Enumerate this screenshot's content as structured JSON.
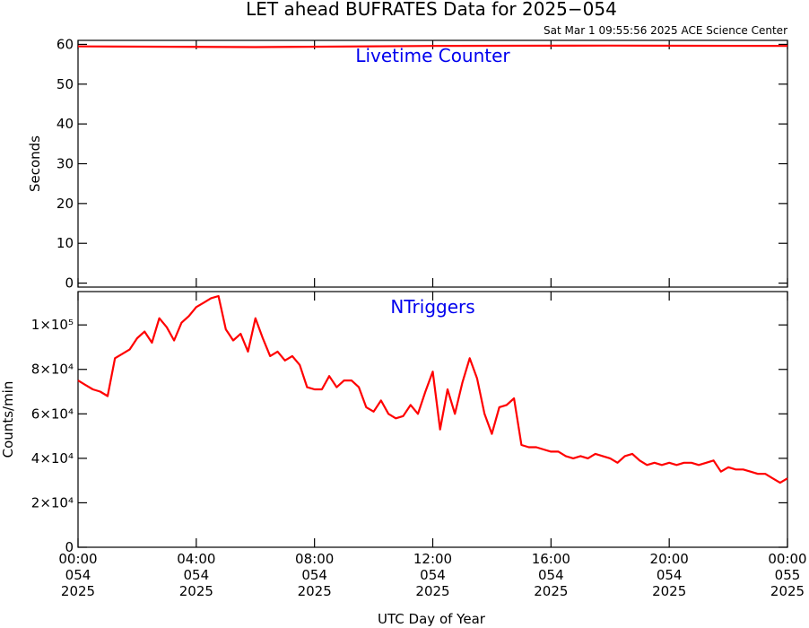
{
  "chart_data": [
    {
      "type": "line",
      "title": "LET ahead BUFRATES Data for 2025−054",
      "subtitle": "Sat Mar  1 09:55:56 2025 ACE Science Center",
      "annotation": "Livetime Counter",
      "ylabel": "Seconds",
      "x": [
        0,
        6,
        12,
        18,
        24
      ],
      "series": [
        {
          "color": "#ff0000",
          "values": [
            59.5,
            59.3,
            59.6,
            59.7,
            59.6
          ]
        }
      ],
      "xlim": [
        0,
        24
      ],
      "xticks": [
        0,
        4,
        8,
        12,
        16,
        20,
        24
      ],
      "ylim": [
        -1,
        61
      ],
      "yticks": [
        0,
        10,
        20,
        30,
        40,
        50,
        60
      ]
    },
    {
      "type": "line",
      "annotation": "NTriggers",
      "ylabel": "Counts/min",
      "xlabel": "UTC Day of Year",
      "x": [
        0,
        0.25,
        0.5,
        0.75,
        1,
        1.25,
        1.5,
        1.75,
        2,
        2.25,
        2.5,
        2.75,
        3,
        3.25,
        3.5,
        3.75,
        4,
        4.25,
        4.5,
        4.75,
        5,
        5.25,
        5.5,
        5.75,
        6,
        6.25,
        6.5,
        6.75,
        7,
        7.25,
        7.5,
        7.75,
        8,
        8.25,
        8.5,
        8.75,
        9,
        9.25,
        9.5,
        9.75,
        10,
        10.25,
        10.5,
        10.75,
        11,
        11.25,
        11.5,
        11.75,
        12,
        12.25,
        12.5,
        12.75,
        13,
        13.25,
        13.5,
        13.75,
        14,
        14.25,
        14.5,
        14.75,
        15,
        15.25,
        15.5,
        15.75,
        16,
        16.25,
        16.5,
        16.75,
        17,
        17.25,
        17.5,
        17.75,
        18,
        18.25,
        18.5,
        18.75,
        19,
        19.25,
        19.5,
        19.75,
        20,
        20.25,
        20.5,
        20.75,
        21,
        21.25,
        21.5,
        21.75,
        22,
        22.25,
        22.5,
        22.75,
        23,
        23.25,
        23.5,
        23.75,
        24
      ],
      "series": [
        {
          "color": "#ff0000",
          "values": [
            75000,
            73000,
            71000,
            70000,
            68000,
            85000,
            87000,
            89000,
            94000,
            97000,
            92000,
            103000,
            99000,
            93000,
            101000,
            104000,
            108000,
            110000,
            112000,
            113000,
            98000,
            93000,
            96000,
            88000,
            103000,
            94000,
            86000,
            88000,
            84000,
            86000,
            82000,
            72000,
            71000,
            71000,
            77000,
            72000,
            75000,
            75000,
            72000,
            63000,
            61000,
            66000,
            60000,
            58000,
            59000,
            64000,
            60000,
            70000,
            79000,
            53000,
            71000,
            60000,
            74000,
            85000,
            76000,
            60000,
            51000,
            63000,
            64000,
            67000,
            46000,
            45000,
            45000,
            44000,
            43000,
            43000,
            41000,
            40000,
            41000,
            40000,
            42000,
            41000,
            40000,
            38000,
            41000,
            42000,
            39000,
            37000,
            38000,
            37000,
            38000,
            37000,
            38000,
            38000,
            37000,
            38000,
            39000,
            34000,
            36000,
            35000,
            35000,
            34000,
            33000,
            33000,
            31000,
            29000,
            31000
          ]
        }
      ],
      "xlim": [
        0,
        24
      ],
      "xticks": [
        {
          "value": 0,
          "label": [
            "00:00",
            "054",
            "2025"
          ]
        },
        {
          "value": 4,
          "label": [
            "04:00",
            "054",
            "2025"
          ]
        },
        {
          "value": 8,
          "label": [
            "08:00",
            "054",
            "2025"
          ]
        },
        {
          "value": 12,
          "label": [
            "12:00",
            "054",
            "2025"
          ]
        },
        {
          "value": 16,
          "label": [
            "16:00",
            "054",
            "2025"
          ]
        },
        {
          "value": 20,
          "label": [
            "20:00",
            "054",
            "2025"
          ]
        },
        {
          "value": 24,
          "label": [
            "00:00",
            "055",
            "2025"
          ]
        }
      ],
      "ylim": [
        0,
        115000
      ],
      "yticks": [
        0,
        {
          "value": 20000,
          "label": "2×10⁴"
        },
        {
          "value": 40000,
          "label": "4×10⁴"
        },
        {
          "value": 60000,
          "label": "6×10⁴"
        },
        {
          "value": 80000,
          "label": "8×10⁴"
        },
        {
          "value": 100000,
          "label": "1×10⁵"
        }
      ]
    }
  ]
}
